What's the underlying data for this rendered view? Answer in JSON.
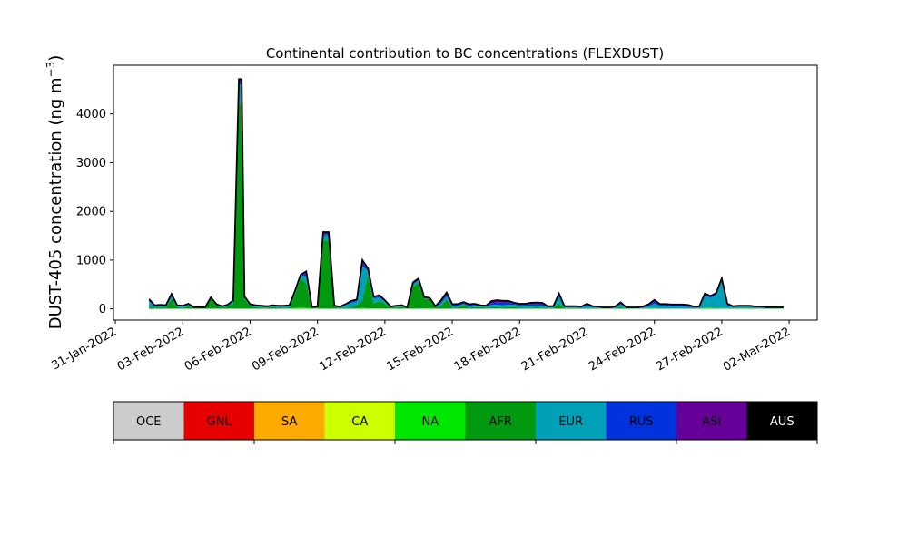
{
  "chart_data": {
    "type": "area",
    "title": "Continental contribution to BC concentrations (FLEXDUST)",
    "ylabel_main": "DUST-405 concentration (ng m",
    "ylabel_sup": "−3",
    "ylabel_close": ")",
    "xlabel": "",
    "ylim": [
      -230,
      5000
    ],
    "y_ticks": [
      0,
      1000,
      2000,
      3000,
      4000
    ],
    "x_ticks": [
      "31-Jan-2022",
      "03-Feb-2022",
      "06-Feb-2022",
      "09-Feb-2022",
      "12-Feb-2022",
      "15-Feb-2022",
      "18-Feb-2022",
      "21-Feb-2022",
      "24-Feb-2022",
      "27-Feb-2022",
      "02-Mar-2022"
    ],
    "x_range_days": [
      "2022-01-30T22:00",
      "2022-03-03T06:00"
    ],
    "legend_placement": "bottom colorbar",
    "continents": [
      {
        "name": "OCE",
        "color": "#cccccc",
        "text_color": "#000000"
      },
      {
        "name": "GNL",
        "color": "#e60000",
        "text_color": "#000000"
      },
      {
        "name": "SA",
        "color": "#ffaa00",
        "text_color": "#000000"
      },
      {
        "name": "CA",
        "color": "#ccff00",
        "text_color": "#000000"
      },
      {
        "name": "NA",
        "color": "#00e600",
        "text_color": "#000000"
      },
      {
        "name": "AFR",
        "color": "#00990f",
        "text_color": "#000000"
      },
      {
        "name": "EUR",
        "color": "#00a0b8",
        "text_color": "#000000"
      },
      {
        "name": "RUS",
        "color": "#0033dd",
        "text_color": "#000000"
      },
      {
        "name": "ASI",
        "color": "#660099",
        "text_color": "#000000"
      },
      {
        "name": "AUS",
        "color": "#000000",
        "text_color": "#ffffff"
      }
    ],
    "x": [
      "2022-02-01T12:00",
      "2022-02-01T18:00",
      "2022-02-02T00:00",
      "2022-02-02T06:00",
      "2022-02-02T12:00",
      "2022-02-02T18:00",
      "2022-02-03T00:00",
      "2022-02-03T06:00",
      "2022-02-03T12:00",
      "2022-02-03T18:00",
      "2022-02-04T00:00",
      "2022-02-04T06:00",
      "2022-02-04T12:00",
      "2022-02-04T18:00",
      "2022-02-05T00:00",
      "2022-02-05T06:00",
      "2022-02-05T12:00",
      "2022-02-05T15:00",
      "2022-02-05T18:00",
      "2022-02-06T00:00",
      "2022-02-06T06:00",
      "2022-02-06T12:00",
      "2022-02-06T18:00",
      "2022-02-07T00:00",
      "2022-02-07T06:00",
      "2022-02-07T12:00",
      "2022-02-07T18:00",
      "2022-02-08T00:00",
      "2022-02-08T06:00",
      "2022-02-08T12:00",
      "2022-02-08T18:00",
      "2022-02-09T00:00",
      "2022-02-09T06:00",
      "2022-02-09T12:00",
      "2022-02-09T18:00",
      "2022-02-10T00:00",
      "2022-02-10T06:00",
      "2022-02-10T12:00",
      "2022-02-10T18:00",
      "2022-02-11T00:00",
      "2022-02-11T06:00",
      "2022-02-11T12:00",
      "2022-02-11T18:00",
      "2022-02-12T00:00",
      "2022-02-12T06:00",
      "2022-02-12T12:00",
      "2022-02-12T18:00",
      "2022-02-13T00:00",
      "2022-02-13T06:00",
      "2022-02-13T12:00",
      "2022-02-13T18:00",
      "2022-02-14T00:00",
      "2022-02-14T06:00",
      "2022-02-14T12:00",
      "2022-02-14T18:00",
      "2022-02-15T00:00",
      "2022-02-15T06:00",
      "2022-02-15T12:00",
      "2022-02-15T18:00",
      "2022-02-16T00:00",
      "2022-02-16T06:00",
      "2022-02-16T12:00",
      "2022-02-16T18:00",
      "2022-02-17T00:00",
      "2022-02-17T06:00",
      "2022-02-17T12:00",
      "2022-02-17T18:00",
      "2022-02-18T00:00",
      "2022-02-18T06:00",
      "2022-02-18T12:00",
      "2022-02-18T18:00",
      "2022-02-19T00:00",
      "2022-02-19T06:00",
      "2022-02-19T12:00",
      "2022-02-19T18:00",
      "2022-02-20T00:00",
      "2022-02-20T06:00",
      "2022-02-20T12:00",
      "2022-02-20T18:00",
      "2022-02-21T00:00",
      "2022-02-21T06:00",
      "2022-02-21T12:00",
      "2022-02-21T18:00",
      "2022-02-22T00:00",
      "2022-02-22T06:00",
      "2022-02-22T12:00",
      "2022-02-22T18:00",
      "2022-02-23T00:00",
      "2022-02-23T06:00",
      "2022-02-23T12:00",
      "2022-02-23T18:00",
      "2022-02-24T00:00",
      "2022-02-24T06:00",
      "2022-02-24T12:00",
      "2022-02-24T18:00",
      "2022-02-25T00:00",
      "2022-02-25T06:00",
      "2022-02-25T12:00",
      "2022-02-25T18:00",
      "2022-02-26T00:00",
      "2022-02-26T06:00",
      "2022-02-26T12:00",
      "2022-02-26T18:00",
      "2022-02-27T00:00",
      "2022-02-27T06:00",
      "2022-02-27T12:00",
      "2022-02-27T18:00",
      "2022-02-28T00:00",
      "2022-02-28T06:00",
      "2022-02-28T12:00",
      "2022-02-28T18:00",
      "2022-03-01T00:00",
      "2022-03-01T06:00",
      "2022-03-01T12:00",
      "2022-03-01T18:00"
    ],
    "series": [
      {
        "name": "NA",
        "values": [
          0,
          5,
          5,
          5,
          5,
          5,
          5,
          5,
          5,
          5,
          5,
          5,
          5,
          5,
          5,
          5,
          5,
          5,
          5,
          5,
          5,
          5,
          5,
          5,
          5,
          5,
          10,
          20,
          30,
          20,
          10,
          10,
          5,
          5,
          5,
          5,
          5,
          5,
          10,
          20,
          10,
          10,
          10,
          5,
          10,
          15,
          5,
          5,
          5,
          5,
          10,
          15,
          5,
          5,
          5,
          5,
          10,
          10,
          5,
          5,
          5,
          5,
          10,
          10,
          5,
          5,
          5,
          5,
          5,
          5,
          10,
          5,
          5,
          5,
          5,
          5,
          5,
          5,
          5,
          5,
          5,
          5,
          5,
          5,
          5,
          5,
          5,
          5,
          5,
          5,
          10,
          10,
          5,
          5,
          5,
          5,
          5,
          5,
          5,
          5,
          20,
          20,
          10,
          10,
          10,
          10,
          10,
          10,
          10,
          5,
          5,
          5,
          5,
          5,
          5
        ]
      },
      {
        "name": "AFR",
        "values": [
          50,
          20,
          30,
          20,
          200,
          30,
          10,
          50,
          10,
          10,
          5,
          200,
          60,
          20,
          50,
          100,
          4200,
          4200,
          200,
          50,
          30,
          20,
          20,
          30,
          20,
          10,
          15,
          280,
          600,
          500,
          10,
          20,
          1400,
          1400,
          30,
          10,
          20,
          20,
          60,
          150,
          700,
          100,
          150,
          100,
          20,
          20,
          30,
          10,
          450,
          520,
          200,
          180,
          20,
          60,
          200,
          20,
          20,
          60,
          20,
          30,
          30,
          20,
          20,
          20,
          20,
          30,
          40,
          20,
          20,
          20,
          20,
          20,
          10,
          10,
          100,
          10,
          10,
          10,
          5,
          10,
          10,
          5,
          5,
          5,
          5,
          30,
          5,
          5,
          5,
          5,
          5,
          5,
          5,
          5,
          5,
          5,
          5,
          5,
          5,
          5,
          5,
          5,
          5,
          5,
          5,
          5,
          5,
          5,
          5,
          5,
          5,
          5,
          5,
          5,
          5
        ]
      },
      {
        "name": "EUR",
        "values": [
          100,
          30,
          30,
          30,
          50,
          20,
          30,
          30,
          10,
          10,
          10,
          20,
          20,
          20,
          20,
          50,
          400,
          400,
          30,
          20,
          20,
          20,
          10,
          20,
          20,
          30,
          30,
          50,
          50,
          150,
          10,
          10,
          100,
          100,
          20,
          20,
          50,
          100,
          80,
          700,
          80,
          100,
          80,
          50,
          10,
          20,
          20,
          10,
          50,
          60,
          10,
          10,
          10,
          50,
          50,
          30,
          30,
          30,
          30,
          30,
          20,
          20,
          50,
          50,
          50,
          50,
          40,
          40,
          40,
          40,
          40,
          40,
          20,
          20,
          150,
          20,
          20,
          20,
          20,
          50,
          20,
          20,
          10,
          10,
          20,
          60,
          10,
          10,
          10,
          20,
          40,
          90,
          50,
          50,
          40,
          40,
          40,
          30,
          20,
          20,
          250,
          200,
          270,
          550,
          50,
          20,
          30,
          30,
          30,
          20,
          20,
          15,
          15,
          15,
          15
        ]
      },
      {
        "name": "RUS",
        "values": [
          20,
          10,
          10,
          10,
          20,
          10,
          10,
          10,
          5,
          5,
          5,
          5,
          5,
          5,
          5,
          10,
          50,
          50,
          10,
          10,
          10,
          10,
          10,
          10,
          10,
          10,
          10,
          10,
          10,
          50,
          5,
          5,
          30,
          30,
          5,
          5,
          10,
          20,
          20,
          80,
          20,
          20,
          20,
          10,
          5,
          5,
          10,
          5,
          20,
          20,
          10,
          10,
          10,
          30,
          40,
          20,
          20,
          20,
          20,
          20,
          10,
          10,
          40,
          50,
          50,
          40,
          20,
          20,
          20,
          30,
          30,
          30,
          10,
          10,
          30,
          10,
          10,
          10,
          10,
          20,
          10,
          10,
          5,
          5,
          10,
          20,
          5,
          5,
          5,
          10,
          20,
          40,
          20,
          20,
          20,
          20,
          20,
          20,
          10,
          10,
          20,
          20,
          20,
          30,
          20,
          10,
          10,
          10,
          10,
          10,
          10,
          5,
          5,
          5,
          5
        ]
      },
      {
        "name": "ASI",
        "values": [
          30,
          10,
          10,
          10,
          30,
          10,
          10,
          10,
          5,
          5,
          5,
          5,
          5,
          5,
          5,
          10,
          60,
          60,
          10,
          10,
          10,
          10,
          10,
          10,
          10,
          10,
          10,
          10,
          10,
          50,
          5,
          5,
          40,
          40,
          5,
          5,
          10,
          20,
          20,
          50,
          20,
          20,
          20,
          10,
          5,
          5,
          10,
          5,
          20,
          20,
          10,
          10,
          10,
          30,
          40,
          20,
          20,
          20,
          20,
          20,
          10,
          10,
          40,
          50,
          40,
          40,
          20,
          20,
          20,
          30,
          30,
          30,
          10,
          10,
          30,
          10,
          10,
          10,
          10,
          20,
          10,
          10,
          5,
          5,
          10,
          20,
          5,
          5,
          5,
          10,
          20,
          40,
          20,
          20,
          20,
          20,
          20,
          20,
          10,
          10,
          20,
          20,
          20,
          30,
          20,
          10,
          10,
          10,
          10,
          10,
          10,
          5,
          5,
          5,
          5
        ]
      }
    ]
  }
}
